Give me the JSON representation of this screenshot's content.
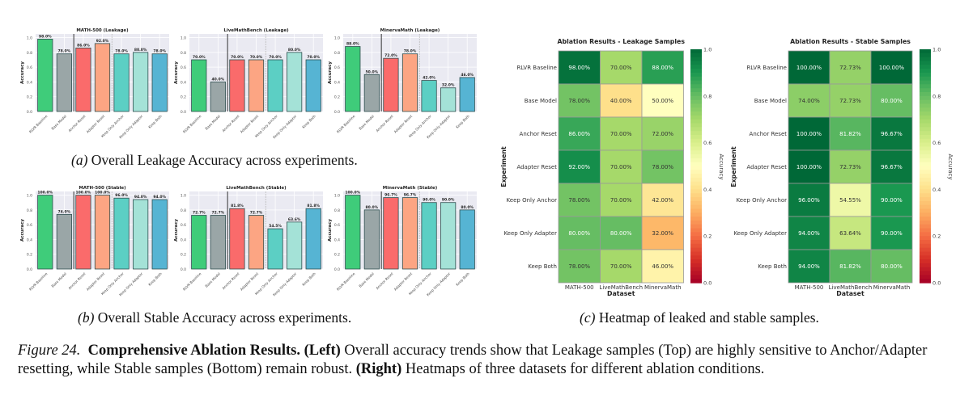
{
  "figure": {
    "label": "Figure 24.",
    "bold_title": "Comprehensive Ablation Results.",
    "left_tag": "(Left)",
    "left_text": " Overall accuracy trends show that Leakage samples (Top) are highly sensitive to Anchor/Adapter resetting, while Stable samples (Bottom) remain robust. ",
    "right_tag": "(Right)",
    "right_text": " Heatmaps of three datasets for different ablation conditions."
  },
  "subcaptions": {
    "a_tag": "(a)",
    "a_text": " Overall Leakage Accuracy across experiments.",
    "b_tag": "(b)",
    "b_text": " Overall Stable Accuracy across experiments.",
    "c_tag": "(c)",
    "c_text": " Heatmap of leaked and stable samples."
  },
  "colors": {
    "experiments": [
      "#3fcc7a",
      "#9aa6a7",
      "#fa6b6b",
      "#fca583",
      "#5ccfc4",
      "#a4e2d7",
      "#56b4d3"
    ],
    "plot_bg": "#eaeaf2",
    "bar_edge": "#2f4f4f"
  },
  "chart_data": [
    {
      "type": "bar",
      "title": "MATH-500 (Leakage)",
      "ylabel": "Accuracy",
      "ylim": [
        0,
        1.05
      ],
      "yticks": [
        "0.0",
        "0.2",
        "0.4",
        "0.6",
        "0.8",
        "1.0"
      ],
      "categories": [
        "RLVR Baseline",
        "Base Model",
        "Anchor Reset",
        "Adapter Reset",
        "Keep Only Anchor",
        "Keep Only Adapter",
        "Keep Both"
      ],
      "values": [
        0.98,
        0.78,
        0.86,
        0.92,
        0.78,
        0.8,
        0.78
      ],
      "labels": [
        "98.0%",
        "78.0%",
        "86.0%",
        "92.0%",
        "78.0%",
        "80.0%",
        "78.0%"
      ]
    },
    {
      "type": "bar",
      "title": "LiveMathBench (Leakage)",
      "ylabel": "Accuracy",
      "ylim": [
        0,
        1.05
      ],
      "yticks": [
        "0.0",
        "0.2",
        "0.4",
        "0.6",
        "0.8",
        "1.0"
      ],
      "categories": [
        "RLVR Baseline",
        "Base Model",
        "Anchor Reset",
        "Adapter Reset",
        "Keep Only Anchor",
        "Keep Only Adapter",
        "Keep Both"
      ],
      "values": [
        0.7,
        0.4,
        0.7,
        0.7,
        0.7,
        0.8,
        0.7
      ],
      "labels": [
        "70.0%",
        "40.0%",
        "70.0%",
        "70.0%",
        "70.0%",
        "80.0%",
        "70.0%"
      ]
    },
    {
      "type": "bar",
      "title": "MinervaMath (Leakage)",
      "ylabel": "Accuracy",
      "ylim": [
        0,
        1.05
      ],
      "yticks": [
        "0.0",
        "0.2",
        "0.4",
        "0.6",
        "0.8",
        "1.0"
      ],
      "categories": [
        "RLVR Baseline",
        "Base Model",
        "Anchor Reset",
        "Adapter Reset",
        "Keep Only Anchor",
        "Keep Only Adapter",
        "Keep Both"
      ],
      "values": [
        0.88,
        0.5,
        0.72,
        0.78,
        0.42,
        0.32,
        0.46
      ],
      "labels": [
        "88.0%",
        "50.0%",
        "72.0%",
        "78.0%",
        "42.0%",
        "32.0%",
        "46.0%"
      ]
    },
    {
      "type": "bar",
      "title": "MATH-500 (Stable)",
      "ylabel": "Accuracy",
      "ylim": [
        0,
        1.05
      ],
      "yticks": [
        "0.0",
        "0.2",
        "0.4",
        "0.6",
        "0.8",
        "1.0"
      ],
      "categories": [
        "RLVR Baseline",
        "Base Model",
        "Anchor Reset",
        "Adapter Reset",
        "Keep Only Anchor",
        "Keep Only Adapter",
        "Keep Both"
      ],
      "values": [
        1.0,
        0.74,
        1.0,
        1.0,
        0.96,
        0.94,
        0.94
      ],
      "labels": [
        "100.0%",
        "74.0%",
        "100.0%",
        "100.0%",
        "96.0%",
        "94.0%",
        "94.0%"
      ]
    },
    {
      "type": "bar",
      "title": "LiveMathBench (Stable)",
      "ylabel": "Accuracy",
      "ylim": [
        0,
        1.05
      ],
      "yticks": [
        "0.0",
        "0.2",
        "0.4",
        "0.6",
        "0.8",
        "1.0"
      ],
      "categories": [
        "RLVR Baseline",
        "Base Model",
        "Anchor Reset",
        "Adapter Reset",
        "Keep Only Anchor",
        "Keep Only Adapter",
        "Keep Both"
      ],
      "values": [
        0.727,
        0.727,
        0.818,
        0.727,
        0.545,
        0.636,
        0.818
      ],
      "labels": [
        "72.7%",
        "72.7%",
        "81.8%",
        "72.7%",
        "54.5%",
        "63.6%",
        "81.8%"
      ]
    },
    {
      "type": "bar",
      "title": "MinervaMath (Stable)",
      "ylabel": "Accuracy",
      "ylim": [
        0,
        1.05
      ],
      "yticks": [
        "0.0",
        "0.2",
        "0.4",
        "0.6",
        "0.8",
        "1.0"
      ],
      "categories": [
        "RLVR Baseline",
        "Base Model",
        "Anchor Reset",
        "Adapter Reset",
        "Keep Only Anchor",
        "Keep Only Adapter",
        "Keep Both"
      ],
      "values": [
        1.0,
        0.8,
        0.967,
        0.967,
        0.9,
        0.9,
        0.8
      ],
      "labels": [
        "100.0%",
        "80.0%",
        "96.7%",
        "96.7%",
        "90.0%",
        "90.0%",
        "80.0%"
      ]
    },
    {
      "type": "heatmap",
      "title": "Ablation Results - Leakage Samples",
      "xlabel": "Dataset",
      "ylabel": "Experiment",
      "colorbar_label": "Accuracy",
      "colorbar_range": [
        0,
        1
      ],
      "colorbar_ticks": [
        "0.0",
        "0.2",
        "0.4",
        "0.6",
        "0.8",
        "1.0"
      ],
      "x": [
        "MATH-500",
        "LiveMathBench",
        "MinervaMath"
      ],
      "y": [
        "RLVR Baseline",
        "Base Model",
        "Anchor Reset",
        "Adapter Reset",
        "Keep Only Anchor",
        "Keep Only Adapter",
        "Keep Both"
      ],
      "values": [
        [
          0.98,
          0.7,
          0.88
        ],
        [
          0.78,
          0.4,
          0.5
        ],
        [
          0.86,
          0.7,
          0.72
        ],
        [
          0.92,
          0.7,
          0.78
        ],
        [
          0.78,
          0.7,
          0.42
        ],
        [
          0.8,
          0.8,
          0.32
        ],
        [
          0.78,
          0.7,
          0.46
        ]
      ],
      "labels": [
        [
          "98.00%",
          "70.00%",
          "88.00%"
        ],
        [
          "78.00%",
          "40.00%",
          "50.00%"
        ],
        [
          "86.00%",
          "70.00%",
          "72.00%"
        ],
        [
          "92.00%",
          "70.00%",
          "78.00%"
        ],
        [
          "78.00%",
          "70.00%",
          "42.00%"
        ],
        [
          "80.00%",
          "80.00%",
          "32.00%"
        ],
        [
          "78.00%",
          "70.00%",
          "46.00%"
        ]
      ]
    },
    {
      "type": "heatmap",
      "title": "Ablation Results - Stable Samples",
      "xlabel": "Dataset",
      "ylabel": "Experiment",
      "colorbar_label": "Accuracy",
      "colorbar_range": [
        0,
        1
      ],
      "colorbar_ticks": [
        "0.0",
        "0.2",
        "0.4",
        "0.6",
        "0.8",
        "1.0"
      ],
      "x": [
        "MATH-500",
        "LiveMathBench",
        "MinervaMath"
      ],
      "y": [
        "RLVR Baseline",
        "Base Model",
        "Anchor Reset",
        "Adapter Reset",
        "Keep Only Anchor",
        "Keep Only Adapter",
        "Keep Both"
      ],
      "values": [
        [
          1.0,
          0.7273,
          1.0
        ],
        [
          0.74,
          0.7273,
          0.8
        ],
        [
          1.0,
          0.8182,
          0.9667
        ],
        [
          1.0,
          0.7273,
          0.9667
        ],
        [
          0.96,
          0.5455,
          0.9
        ],
        [
          0.94,
          0.6364,
          0.9
        ],
        [
          0.94,
          0.8182,
          0.8
        ]
      ],
      "labels": [
        [
          "100.00%",
          "72.73%",
          "100.00%"
        ],
        [
          "74.00%",
          "72.73%",
          "80.00%"
        ],
        [
          "100.00%",
          "81.82%",
          "96.67%"
        ],
        [
          "100.00%",
          "72.73%",
          "96.67%"
        ],
        [
          "96.00%",
          "54.55%",
          "90.00%"
        ],
        [
          "94.00%",
          "63.64%",
          "90.00%"
        ],
        [
          "94.00%",
          "81.82%",
          "80.00%"
        ]
      ]
    }
  ]
}
